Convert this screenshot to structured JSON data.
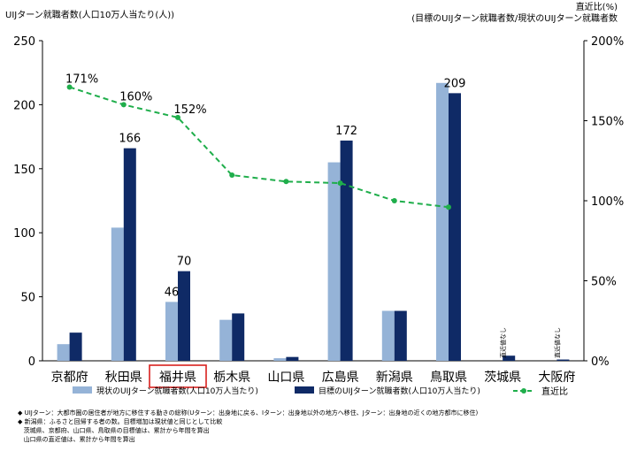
{
  "header": {
    "left_axis_title": "UIJターン就職者数(人口10万人当たり(人))",
    "right_axis_title_line1": "直近比(%)",
    "right_axis_title_line2": "(目標のUIJターン就職者数/現状のUIJターン就職者数"
  },
  "chart_data": {
    "type": "bar",
    "categories": [
      "京都府",
      "秋田県",
      "福井県",
      "栃木県",
      "山口県",
      "広島県",
      "新潟県",
      "鳥取県",
      "茨城県",
      "大阪府"
    ],
    "highlight_category": "福井県",
    "ylim": [
      0,
      250
    ],
    "yticks": [
      0,
      50,
      100,
      150,
      200,
      250
    ],
    "y2lim": [
      0,
      200
    ],
    "y2ticks": [
      "0%",
      "50%",
      "100%",
      "150%",
      "200%"
    ],
    "series": [
      {
        "name": "現状のUIJターン就職者数(人口10万人当たり)",
        "kind": "bar",
        "color": "#95b3d7",
        "values": [
          13,
          104,
          46,
          32,
          2,
          155,
          39,
          217,
          0,
          0
        ]
      },
      {
        "name": "目標のUIJターン就職者数(人口10万人当たり)",
        "kind": "bar",
        "color": "#0f2a66",
        "values": [
          22,
          166,
          70,
          37,
          3,
          172,
          39,
          209,
          4,
          1
        ]
      },
      {
        "name": "直近比",
        "kind": "line",
        "axis": "right",
        "color": "#1fae4b",
        "values": [
          171,
          160,
          152,
          116,
          112,
          111,
          100,
          96,
          null,
          null
        ]
      }
    ],
    "bar_labels": [
      {
        "category_index": 1,
        "series": 1,
        "text": "166"
      },
      {
        "category_index": 2,
        "series": 0,
        "text": "46"
      },
      {
        "category_index": 2,
        "series": 1,
        "text": "70"
      },
      {
        "category_index": 5,
        "series": 1,
        "text": "172"
      },
      {
        "category_index": 7,
        "series": 1,
        "text": "209"
      }
    ],
    "line_labels": [
      {
        "category_index": 0,
        "text": "171%"
      },
      {
        "category_index": 1,
        "text": "160%"
      },
      {
        "category_index": 2,
        "text": "152%"
      }
    ],
    "vertical_notes": [
      {
        "category_index": 8,
        "text": "直近値なし"
      },
      {
        "category_index": 9,
        "text": "直近値なし"
      }
    ],
    "legend": [
      "現状のUIJターン就職者数(人口10万人当たり)",
      "目標のUIJターン就職者数(人口10万人当たり)",
      "直近比"
    ],
    "legend_position": "bottom",
    "grid": false
  },
  "notes": [
    "UIJターン：大都市圏の居住者が地方に移住する動きの総称(Uターン：出身地に戻る、Iターン：出身地以外の地方へ移住、Jターン：出身地の近くの地方都市に移住)",
    "新潟県：ふるさと回帰する者の数。目標増加は現状値と同じとして比較",
    "茨城県、京都府、山口県、鳥取県の目標値は、累計から年間を算出",
    "山口県の直近値は、累計から年間を算出"
  ]
}
